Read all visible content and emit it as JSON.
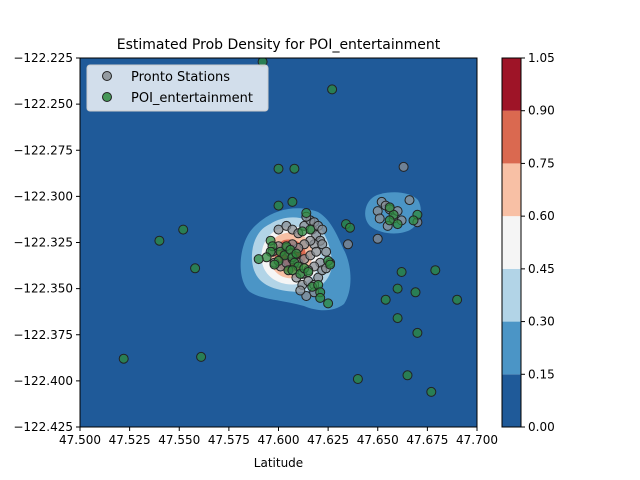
{
  "chart_data": {
    "type": "scatter",
    "title": "Estimated Prob Density for POI_entertainment",
    "xlabel": "Latitude",
    "ylabel": "",
    "xlim": [
      47.5,
      47.7
    ],
    "ylim": [
      -122.425,
      -122.225
    ],
    "x_ticks": [
      "47.500",
      "47.525",
      "47.550",
      "47.575",
      "47.600",
      "47.625",
      "47.650",
      "47.675",
      "47.700"
    ],
    "y_ticks": [
      "−122.225",
      "−122.250",
      "−122.275",
      "−122.300",
      "−122.325",
      "−122.350",
      "−122.375",
      "−122.400",
      "−122.425"
    ],
    "legend_position": "top-left",
    "colorbar": {
      "ticks": [
        "0.00",
        "0.15",
        "0.30",
        "0.45",
        "0.60",
        "0.75",
        "0.90",
        "1.05"
      ],
      "levels": [
        0,
        0.15,
        0.3,
        0.45,
        0.6,
        0.75,
        0.9,
        1.05
      ],
      "colors": [
        "#1f5a99",
        "#4b95c6",
        "#b2d4e7",
        "#f5f5f5",
        "#f8c0a5",
        "#da6950",
        "#9e1427"
      ]
    },
    "series": [
      {
        "name": "Pronto Stations",
        "color": "#8a8f94",
        "points": [
          [
            47.6,
            -122.318
          ],
          [
            47.604,
            -122.316
          ],
          [
            47.607,
            -122.318
          ],
          [
            47.61,
            -122.32
          ],
          [
            47.613,
            -122.316
          ],
          [
            47.616,
            -122.313
          ],
          [
            47.618,
            -122.314
          ],
          [
            47.614,
            -122.311
          ],
          [
            47.617,
            -122.318
          ],
          [
            47.62,
            -122.316
          ],
          [
            47.619,
            -122.321
          ],
          [
            47.622,
            -122.318
          ],
          [
            47.621,
            -122.324
          ],
          [
            47.618,
            -122.326
          ],
          [
            47.616,
            -122.324
          ],
          [
            47.613,
            -122.326
          ],
          [
            47.61,
            -122.328
          ],
          [
            47.607,
            -122.326
          ],
          [
            47.604,
            -122.328
          ],
          [
            47.6,
            -122.327
          ],
          [
            47.597,
            -122.33
          ],
          [
            47.598,
            -122.336
          ],
          [
            47.601,
            -122.338
          ],
          [
            47.604,
            -122.336
          ],
          [
            47.607,
            -122.334
          ],
          [
            47.61,
            -122.336
          ],
          [
            47.613,
            -122.334
          ],
          [
            47.616,
            -122.332
          ],
          [
            47.619,
            -122.33
          ],
          [
            47.622,
            -122.326
          ],
          [
            47.624,
            -122.33
          ],
          [
            47.621,
            -122.336
          ],
          [
            47.618,
            -122.338
          ],
          [
            47.615,
            -122.34
          ],
          [
            47.612,
            -122.342
          ],
          [
            47.609,
            -122.344
          ],
          [
            47.612,
            -122.348
          ],
          [
            47.615,
            -122.346
          ],
          [
            47.618,
            -122.348
          ],
          [
            47.62,
            -122.344
          ],
          [
            47.622,
            -122.34
          ],
          [
            47.624,
            -122.339
          ],
          [
            47.626,
            -122.336
          ],
          [
            47.635,
            -122.326
          ],
          [
            47.614,
            -122.354
          ],
          [
            47.618,
            -122.352
          ],
          [
            47.611,
            -122.351
          ],
          [
            47.606,
            -122.331
          ],
          [
            47.65,
            -122.323
          ],
          [
            47.652,
            -122.303
          ],
          [
            47.654,
            -122.305
          ],
          [
            47.656,
            -122.307
          ],
          [
            47.65,
            -122.308
          ],
          [
            47.658,
            -122.312
          ],
          [
            47.651,
            -122.312
          ],
          [
            47.66,
            -122.308
          ],
          [
            47.662,
            -122.313
          ],
          [
            47.666,
            -122.302
          ],
          [
            47.67,
            -122.314
          ],
          [
            47.655,
            -122.316
          ],
          [
            47.663,
            -122.284
          ]
        ]
      },
      {
        "name": "POI_entertainment",
        "color": "#2e8b3e",
        "points": [
          [
            47.592,
            -122.227
          ],
          [
            47.627,
            -122.242
          ],
          [
            47.6,
            -122.285
          ],
          [
            47.608,
            -122.285
          ],
          [
            47.6,
            -122.305
          ],
          [
            47.607,
            -122.303
          ],
          [
            47.614,
            -122.309
          ],
          [
            47.596,
            -122.324
          ],
          [
            47.597,
            -122.327
          ],
          [
            47.596,
            -122.33
          ],
          [
            47.601,
            -122.33
          ],
          [
            47.603,
            -122.332
          ],
          [
            47.604,
            -122.327
          ],
          [
            47.606,
            -122.329
          ],
          [
            47.607,
            -122.333
          ],
          [
            47.609,
            -122.331
          ],
          [
            47.608,
            -122.336
          ],
          [
            47.61,
            -122.338
          ],
          [
            47.605,
            -122.34
          ],
          [
            47.611,
            -122.342
          ],
          [
            47.613,
            -122.339
          ],
          [
            47.615,
            -122.341
          ],
          [
            47.6,
            -122.335
          ],
          [
            47.598,
            -122.337
          ],
          [
            47.594,
            -122.333
          ],
          [
            47.59,
            -122.334
          ],
          [
            47.607,
            -122.34
          ],
          [
            47.617,
            -122.349
          ],
          [
            47.62,
            -122.348
          ],
          [
            47.621,
            -122.352
          ],
          [
            47.621,
            -122.355
          ],
          [
            47.625,
            -122.358
          ],
          [
            47.625,
            -122.335
          ],
          [
            47.626,
            -122.337
          ],
          [
            47.616,
            -122.318
          ],
          [
            47.634,
            -122.315
          ],
          [
            47.636,
            -122.317
          ],
          [
            47.612,
            -122.319
          ],
          [
            47.64,
            -122.399
          ],
          [
            47.654,
            -122.356
          ],
          [
            47.66,
            -122.35
          ],
          [
            47.66,
            -122.366
          ],
          [
            47.662,
            -122.341
          ],
          [
            47.665,
            -122.397
          ],
          [
            47.669,
            -122.352
          ],
          [
            47.67,
            -122.374
          ],
          [
            47.679,
            -122.34
          ],
          [
            47.677,
            -122.406
          ],
          [
            47.69,
            -122.356
          ],
          [
            47.54,
            -122.324
          ],
          [
            47.552,
            -122.318
          ],
          [
            47.558,
            -122.339
          ],
          [
            47.561,
            -122.387
          ],
          [
            47.522,
            -122.388
          ],
          [
            47.658,
            -122.31
          ],
          [
            47.656,
            -122.306
          ],
          [
            47.66,
            -122.315
          ],
          [
            47.67,
            -122.31
          ],
          [
            47.668,
            -122.313
          ],
          [
            47.656,
            -122.313
          ]
        ]
      }
    ]
  }
}
